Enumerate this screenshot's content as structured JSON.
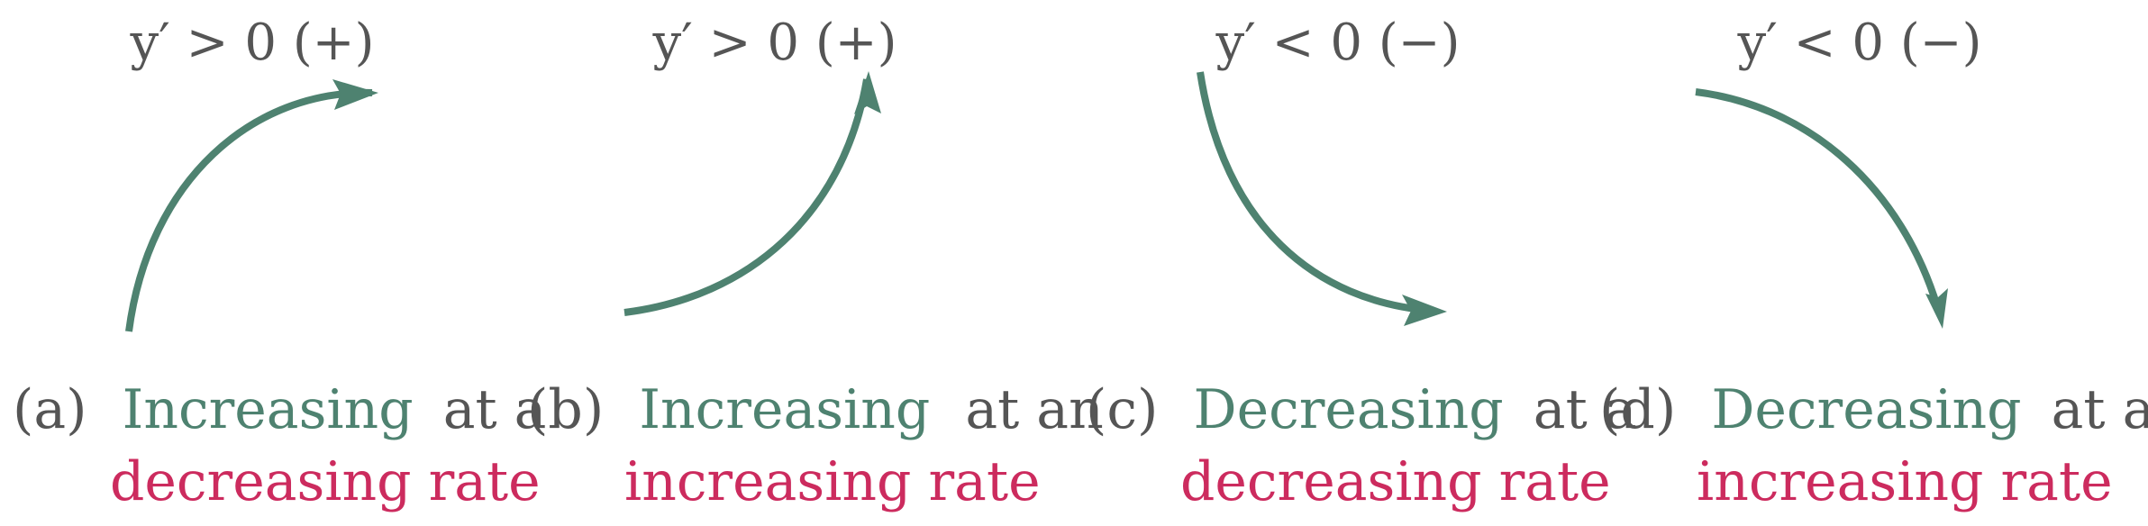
{
  "colors": {
    "text": "#555555",
    "arrow": "#4e8270",
    "accent": "#cc2b5e",
    "background": "#ffffff"
  },
  "panels": [
    {
      "id": "a",
      "derivative_label": "y′ > 0 (+)",
      "tag": "(a)",
      "word1": "Increasing",
      "word2": "at a",
      "line2": "decreasing rate"
    },
    {
      "id": "b",
      "derivative_label": "y′ > 0 (+)",
      "tag": "(b)",
      "word1": "Increasing",
      "word2": "at an",
      "line2": "increasing rate"
    },
    {
      "id": "c",
      "derivative_label": "y′ < 0 (−)",
      "tag": "(c)",
      "word1": "Decreasing",
      "word2": "at a",
      "line2": "decreasing rate"
    },
    {
      "id": "d",
      "derivative_label": "y′ < 0 (−)",
      "tag": "(d)",
      "word1": "Decreasing",
      "word2": "at an",
      "line2": "increasing rate"
    }
  ]
}
